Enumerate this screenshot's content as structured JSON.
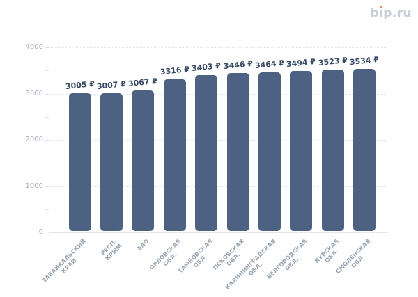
{
  "logo": {
    "text": "bip.ru",
    "dot_color": "#f08465",
    "text_color": "#c8cdda"
  },
  "chart_data": {
    "type": "bar",
    "title": "",
    "xlabel": "",
    "ylabel": "",
    "categories": [
      "ЗАБАЙКАЛЬСКИЙ\nКРАЙ",
      "РЕСП. КРЫМ",
      "ЕАО",
      "ОРЛОВСКАЯ\nОБЛ.",
      "ТАМБОВСКАЯ\nОБЛ.",
      "ПСКОВСКАЯ\nОБЛ.",
      "КАЛИНИНГРАДСКАЯ\nОБЛ.",
      "БЕЛГОРОДСКАЯ\nОБЛ.",
      "КУРСКАЯ ОБЛ.",
      "СМОЛЕНСКАЯ\nОБЛ."
    ],
    "values": [
      3005,
      3007,
      3067,
      3316,
      3403,
      3446,
      3464,
      3494,
      3523,
      3534
    ],
    "value_labels": [
      "3005 ₽",
      "3007 ₽",
      "3067 ₽",
      "3316 ₽",
      "3403 ₽",
      "3446 ₽",
      "3464 ₽",
      "3494 ₽",
      "3523 ₽",
      "3534 ₽"
    ],
    "value_suffix": "₽",
    "ylim": [
      0,
      4000
    ],
    "y_ticks": [
      0,
      1000,
      2000,
      3000,
      4000
    ],
    "y_minor_tick_step": 500,
    "grid": true,
    "gridline_style": "dotted",
    "legend": "none",
    "bar_color": "#4d6282",
    "value_label_color": "#384a63",
    "axis_label_color": "#99a3b2",
    "background_color": "#ffffff"
  }
}
